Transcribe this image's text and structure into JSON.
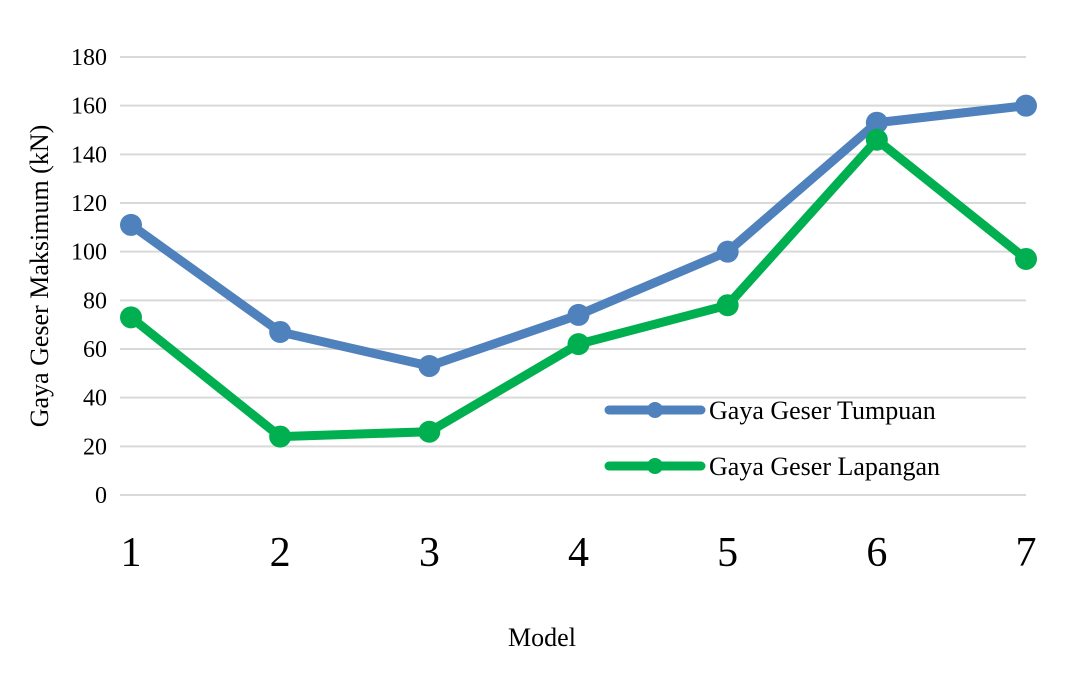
{
  "chart_data": {
    "type": "line",
    "title": "",
    "xlabel": "Model",
    "ylabel": "Gaya Geser Maksimum (kN)",
    "categories": [
      "1",
      "2",
      "3",
      "4",
      "5",
      "6",
      "7"
    ],
    "ylim": [
      0,
      180
    ],
    "yticks": [
      0,
      20,
      40,
      60,
      80,
      100,
      120,
      140,
      160,
      180
    ],
    "grid": true,
    "legend_position": "bottom-right",
    "series": [
      {
        "name": "Gaya Geser Tumpuan",
        "color": "#4f81bd",
        "values": [
          111,
          67,
          53,
          74,
          100,
          153,
          160
        ]
      },
      {
        "name": "Gaya Geser Lapangan",
        "color": "#00b050",
        "values": [
          73,
          24,
          26,
          62,
          78,
          146,
          97
        ]
      }
    ]
  }
}
